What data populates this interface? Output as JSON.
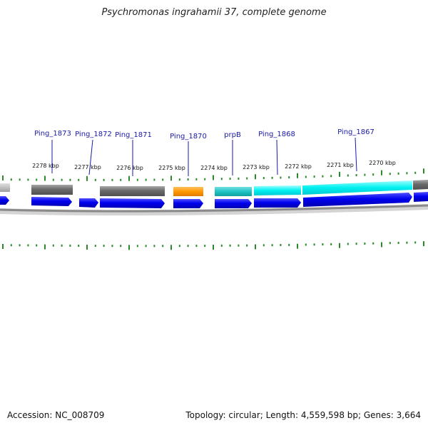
{
  "title": "Psychromonas ingrahamii 37, complete genome",
  "footer": {
    "accession": "Accession: NC_008709",
    "summary": "Topology: circular; Length: 4,559,598 bp; Genes: 3,664"
  },
  "colors": {
    "cds_blue": "#0000ee",
    "gray_feature": "#6e6e6e",
    "orange_feature": "#ff9900",
    "teal_feature": "#20c8c8",
    "cyan_feature": "#00f0f0",
    "tick_green": "#2a8a2a",
    "label_blue": "#1a1aa6",
    "backbone": "#888888"
  },
  "gene_labels": [
    "Ping_1873",
    "Ping_1872",
    "Ping_1871",
    "Ping_1870",
    "prpB",
    "Ping_1868",
    "Ping_1867"
  ],
  "kbp_labels": [
    "2278 kbp",
    "2277 kbp",
    "2276 kbp",
    "2275 kbp",
    "2274 kbp",
    "2273 kbp",
    "2272 kbp",
    "2271 kbp",
    "2270 kbp"
  ]
}
